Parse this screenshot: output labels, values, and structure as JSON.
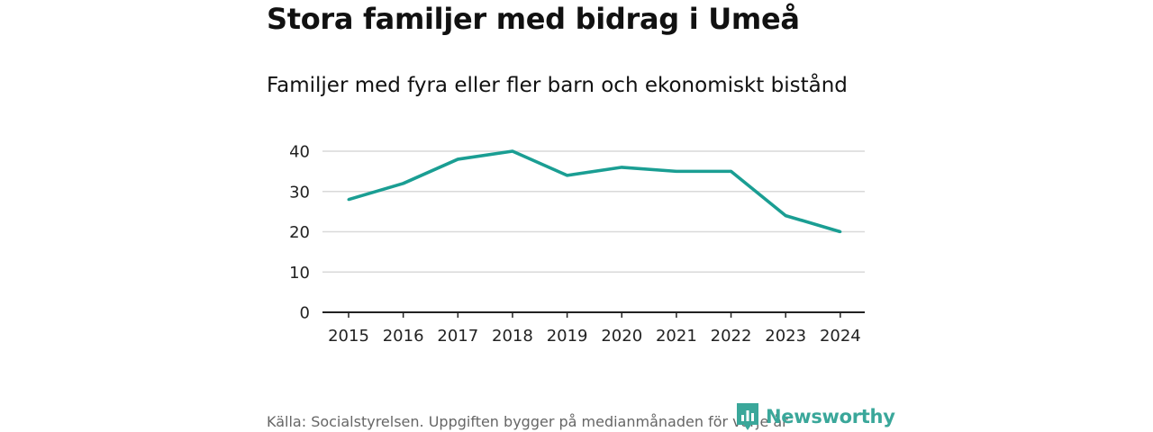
{
  "header": {
    "title": "Stora familjer med bidrag i Umeå",
    "subtitle": "Familjer med fyra eller fler barn och ekonomiskt bistånd"
  },
  "footer": {
    "source": "Källa: Socialstyrelsen. Uppgiften bygger på medianmånaden för varje år",
    "brand": "Newsworthy"
  },
  "colors": {
    "line": "#1a9e93",
    "grid": "#d9d9d9",
    "axis": "#222222",
    "brand": "#3aa79a"
  },
  "chart_data": {
    "type": "line",
    "title": "Stora familjer med bidrag i Umeå",
    "subtitle": "Familjer med fyra eller fler barn och ekonomiskt bistånd",
    "xlabel": "",
    "ylabel": "",
    "categories": [
      "2015",
      "2016",
      "2017",
      "2018",
      "2019",
      "2020",
      "2021",
      "2022",
      "2023",
      "2024"
    ],
    "series": [
      {
        "name": "Familjer med fyra eller fler barn och ekonomiskt bistånd",
        "values": [
          28,
          32,
          38,
          40,
          34,
          36,
          35,
          35,
          24,
          20
        ]
      }
    ],
    "ylim": [
      0,
      40
    ],
    "yticks": [
      0,
      10,
      20,
      30,
      40
    ],
    "grid": true,
    "legend": "none"
  }
}
